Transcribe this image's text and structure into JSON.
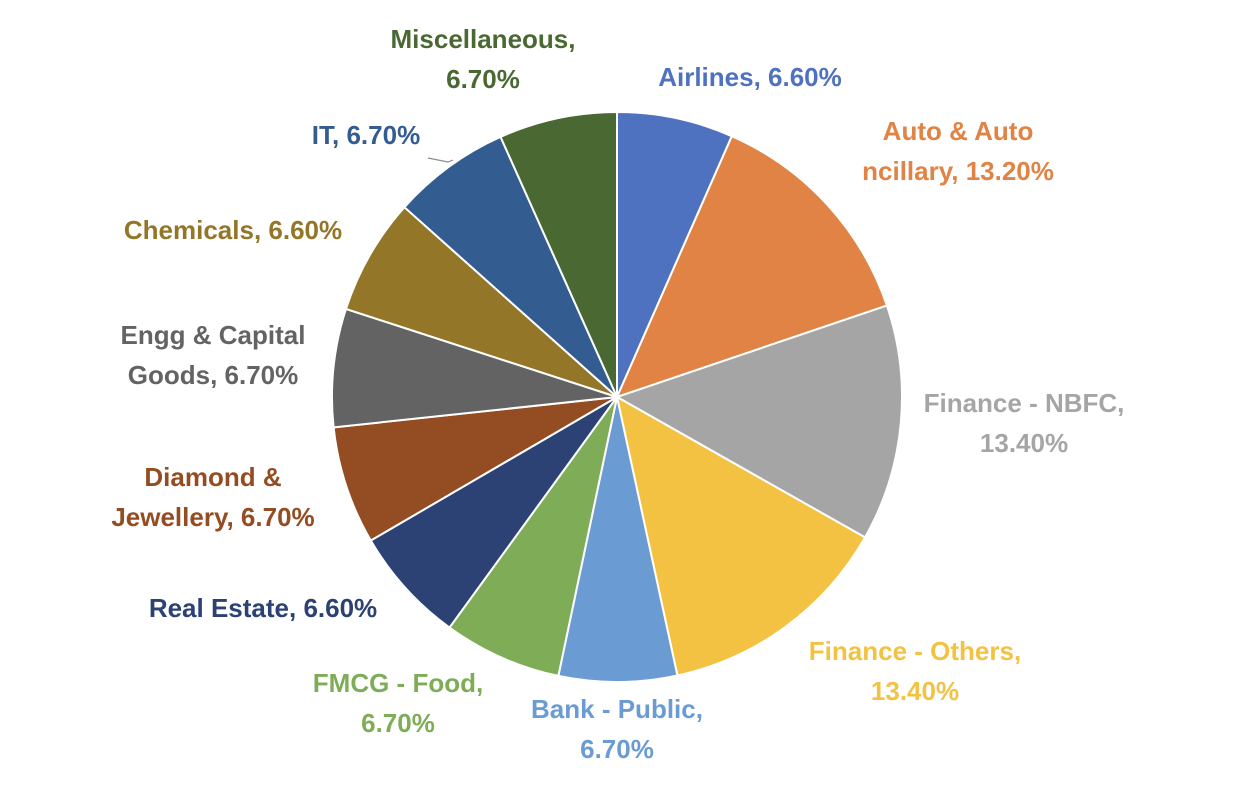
{
  "chart_data": {
    "type": "pie",
    "start_angle": "12 o'clock",
    "direction": "clockwise",
    "slice_border_color": "#ffffff",
    "slices": [
      {
        "name": "Airlines",
        "value": 6.6,
        "label": "Airlines, 6.60%",
        "color": "#4F72C0"
      },
      {
        "name": "Auto & Auto Ancillary",
        "value": 13.2,
        "label": "Auto & Auto Ancillary, 13.20%",
        "color": "#E08344"
      },
      {
        "name": "Finance - NBFC",
        "value": 13.4,
        "label": "Finance - NBFC, 13.40%",
        "color": "#A5A5A5"
      },
      {
        "name": "Finance - Others",
        "value": 13.4,
        "label": "Finance - Others, 13.40%",
        "color": "#F4C243"
      },
      {
        "name": "Bank - Public",
        "value": 6.7,
        "label": "Bank - Public, 6.70%",
        "color": "#6A9BD3"
      },
      {
        "name": "FMCG - Food",
        "value": 6.7,
        "label": "FMCG - Food, 6.70%",
        "color": "#7FAD57"
      },
      {
        "name": "Real Estate",
        "value": 6.6,
        "label": "Real Estate, 6.60%",
        "color": "#2C4274"
      },
      {
        "name": "Diamond & Jewellery",
        "value": 6.7,
        "label": "Diamond & Jewellery, 6.70%",
        "color": "#944C22"
      },
      {
        "name": "Engg & Capital Goods",
        "value": 6.7,
        "label": "Engg & Capital Goods, 6.70%",
        "color": "#636363"
      },
      {
        "name": "Chemicals",
        "value": 6.6,
        "label": "Chemicals, 6.60%",
        "color": "#937628"
      },
      {
        "name": "IT",
        "value": 6.7,
        "label": "IT, 6.70%",
        "color": "#335D91"
      },
      {
        "name": "Miscellaneous",
        "value": 6.7,
        "label": "Miscellaneous, 6.70%",
        "color": "#4A6932"
      }
    ]
  }
}
